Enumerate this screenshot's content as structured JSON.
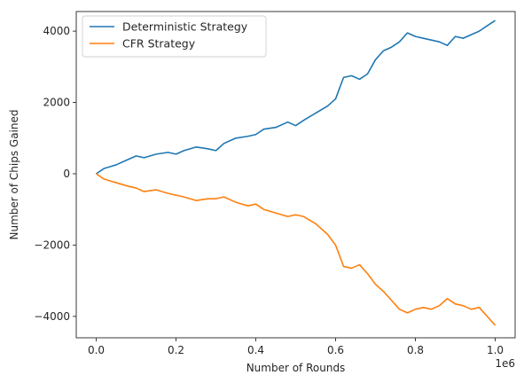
{
  "chart_data": {
    "type": "line",
    "title": "",
    "xlabel": "Number of Rounds",
    "ylabel": "Number of Chips Gained",
    "x_offset_text": "1e6",
    "xlim": [
      -0.05,
      1.05
    ],
    "ylim": [
      -4600,
      4550
    ],
    "x_ticks": [
      0.0,
      0.2,
      0.4,
      0.6,
      0.8,
      1.0
    ],
    "x_tick_labels": [
      "0.0",
      "0.2",
      "0.4",
      "0.6",
      "0.8",
      "1.0"
    ],
    "y_ticks": [
      -4000,
      -2000,
      0,
      2000,
      4000
    ],
    "y_tick_labels": [
      "−4000",
      "−2000",
      "0",
      "2000",
      "4000"
    ],
    "grid": false,
    "legend_position": "top-left",
    "series": [
      {
        "name": "Deterministic Strategy",
        "color": "#1f77b4",
        "x": [
          0.0,
          0.02,
          0.05,
          0.08,
          0.1,
          0.12,
          0.15,
          0.18,
          0.2,
          0.22,
          0.25,
          0.28,
          0.3,
          0.32,
          0.35,
          0.38,
          0.4,
          0.42,
          0.45,
          0.48,
          0.5,
          0.52,
          0.55,
          0.58,
          0.6,
          0.62,
          0.64,
          0.66,
          0.68,
          0.7,
          0.72,
          0.74,
          0.76,
          0.78,
          0.8,
          0.82,
          0.84,
          0.86,
          0.88,
          0.9,
          0.92,
          0.94,
          0.96,
          0.98,
          1.0
        ],
        "values": [
          0,
          150,
          250,
          400,
          500,
          450,
          550,
          600,
          550,
          650,
          750,
          700,
          650,
          850,
          1000,
          1050,
          1100,
          1250,
          1300,
          1450,
          1350,
          1500,
          1700,
          1900,
          2100,
          2700,
          2750,
          2650,
          2800,
          3200,
          3450,
          3550,
          3700,
          3950,
          3850,
          3800,
          3750,
          3700,
          3600,
          3850,
          3800,
          3900,
          4000,
          4150,
          4300
        ]
      },
      {
        "name": "CFR Strategy",
        "color": "#ff7f0e",
        "x": [
          0.0,
          0.02,
          0.05,
          0.08,
          0.1,
          0.12,
          0.15,
          0.18,
          0.2,
          0.22,
          0.25,
          0.28,
          0.3,
          0.32,
          0.35,
          0.38,
          0.4,
          0.42,
          0.45,
          0.48,
          0.5,
          0.52,
          0.55,
          0.58,
          0.6,
          0.62,
          0.64,
          0.66,
          0.68,
          0.7,
          0.72,
          0.74,
          0.76,
          0.78,
          0.8,
          0.82,
          0.84,
          0.86,
          0.88,
          0.9,
          0.92,
          0.94,
          0.96,
          0.98,
          1.0
        ],
        "values": [
          0,
          -150,
          -250,
          -350,
          -400,
          -500,
          -450,
          -550,
          -600,
          -650,
          -750,
          -700,
          -700,
          -650,
          -800,
          -900,
          -850,
          -1000,
          -1100,
          -1200,
          -1150,
          -1200,
          -1400,
          -1700,
          -2000,
          -2600,
          -2650,
          -2550,
          -2800,
          -3100,
          -3300,
          -3550,
          -3800,
          -3900,
          -3800,
          -3750,
          -3800,
          -3700,
          -3500,
          -3650,
          -3700,
          -3800,
          -3750,
          -4000,
          -4250
        ]
      }
    ]
  }
}
